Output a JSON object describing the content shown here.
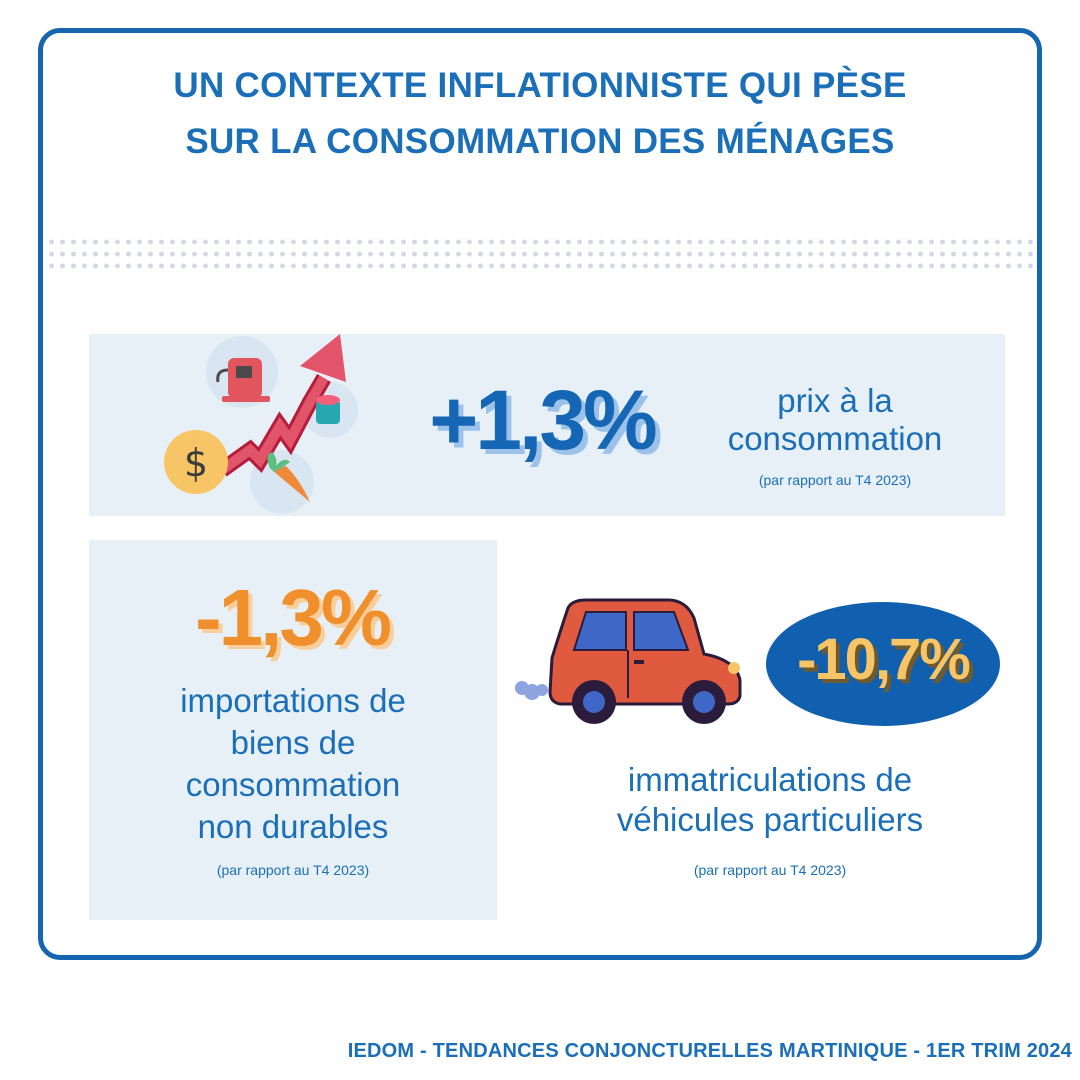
{
  "title": {
    "line1": "UN CONTEXTE INFLATIONNISTE QUI PÈSE",
    "line2": "SUR LA CONSOMMATION DES MÉNAGES"
  },
  "prices": {
    "value": "+1,3%",
    "label_line1": "prix à la",
    "label_line2": "consommation",
    "note": "(par rapport au T4 2023)"
  },
  "imports": {
    "value": "-1,3%",
    "label_line1": "importations de",
    "label_line2": "biens de",
    "label_line3": "consommation",
    "label_line4": "non durables",
    "note": "(par rapport au T4 2023)"
  },
  "registrations": {
    "value": "-10,7%",
    "label_line1": "immatriculations de",
    "label_line2": "véhicules particuliers",
    "note": "(par rapport au T4 2023)"
  },
  "icons": {
    "inflation": "inflation-arrow-icon",
    "fuel": "fuel-pump-icon",
    "dollar": "dollar-coin-icon",
    "carrot": "carrot-icon",
    "can": "can-icon",
    "car": "car-icon",
    "exhaust": "exhaust-smoke-icon"
  },
  "colors": {
    "blue": "#1a6fb8",
    "orange": "#f0902c",
    "yellow": "#f7c466",
    "panel": "#e8f0f7"
  },
  "footer": "IEDOM - TENDANCES CONJONCTURELLES MARTINIQUE - 1ER TRIM 2024"
}
